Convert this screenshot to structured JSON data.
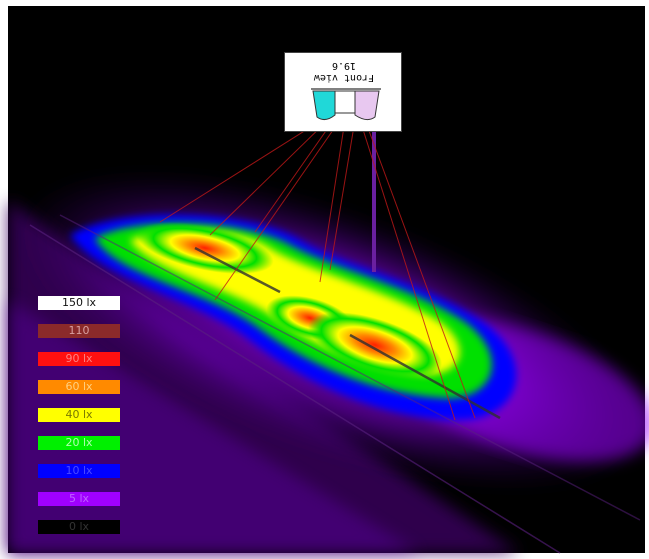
{
  "legend": {
    "items": [
      {
        "label": "150 lx",
        "color": "#ffffff",
        "text_color": "#111111"
      },
      {
        "label": "110",
        "color": "#8b2a2a",
        "text_color": "#d9a0a0"
      },
      {
        "label": "90 lx",
        "color": "#ff1010",
        "text_color": "#ff8080"
      },
      {
        "label": "60 lx",
        "color": "#ff8a00",
        "text_color": "#ffd080"
      },
      {
        "label": "40 lx",
        "color": "#ffff00",
        "text_color": "#7a7a00"
      },
      {
        "label": "20 lx",
        "color": "#00f000",
        "text_color": "#b0ffb0"
      },
      {
        "label": "10 lx",
        "color": "#0000ff",
        "text_color": "#4a4aff"
      },
      {
        "label": "5 lx",
        "color": "#a000ff",
        "text_color": "#c060ff"
      },
      {
        "label": "0 lx",
        "color": "#000000",
        "text_color": "#333333"
      }
    ]
  },
  "inset": {
    "dimension": "19.6",
    "caption": "Front view"
  },
  "colors": {
    "background": "#000000",
    "glow": "#8a00ff",
    "beam": "#d01010",
    "lens_left": "#20d8d8",
    "lens_right": "#e8c8f0"
  }
}
